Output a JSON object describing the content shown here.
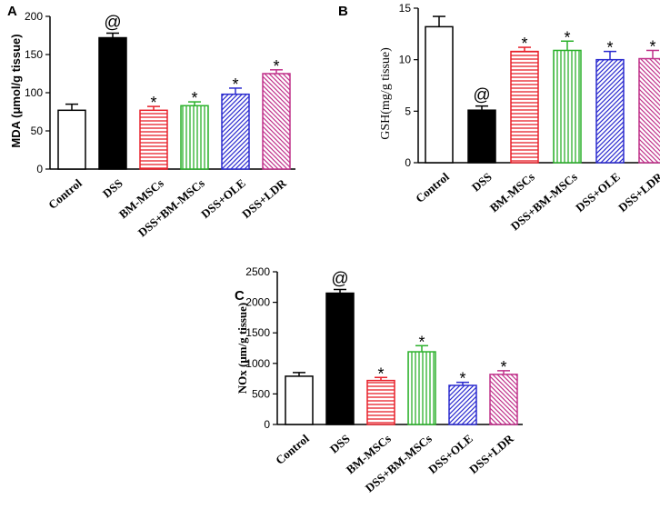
{
  "chart_data": [
    {
      "type": "bar",
      "panel": "A",
      "ylabel": "MDA (μmol/g tissue)",
      "ylim": [
        0,
        200
      ],
      "yticks": [
        0,
        50,
        100,
        150,
        200
      ],
      "categories": [
        "Control",
        "DSS",
        "BM-MSCs",
        "DSS+BM-MSCs",
        "DSS+OLE",
        "DSS+LDR"
      ],
      "values": [
        77,
        172,
        77,
        83,
        98,
        125
      ],
      "errors": [
        8,
        6,
        5,
        5,
        8,
        5
      ],
      "annotations": [
        "",
        "@",
        "*",
        "*",
        "*",
        "*"
      ],
      "fills": [
        "white",
        "black",
        "hatch-red",
        "hatch-green",
        "hatch-blue",
        "hatch-pink"
      ]
    },
    {
      "type": "bar",
      "panel": "B",
      "ylabel": "GSH(mg/g tissue)",
      "ylim": [
        0,
        15
      ],
      "yticks": [
        0,
        5,
        10,
        15
      ],
      "categories": [
        "Control",
        "DSS",
        "BM-MSCs",
        "DSS+BM-MSCs",
        "DSS+OLE",
        "DSS+LDR"
      ],
      "values": [
        13.2,
        5.1,
        10.8,
        10.9,
        10.0,
        10.1
      ],
      "errors": [
        1.0,
        0.4,
        0.4,
        0.9,
        0.8,
        0.8
      ],
      "annotations": [
        "",
        "@",
        "*",
        "*",
        "*",
        "*"
      ],
      "fills": [
        "white",
        "black",
        "hatch-red",
        "hatch-green",
        "hatch-blue",
        "hatch-pink"
      ]
    },
    {
      "type": "bar",
      "panel": "C",
      "ylabel": "NOx (μm/g tissue)",
      "ylim": [
        0,
        2500
      ],
      "yticks": [
        0,
        500,
        1000,
        1500,
        2000,
        2500
      ],
      "categories": [
        "Control",
        "DSS",
        "BM-MSCs",
        "DSS+BM-MSCs",
        "DSS+OLE",
        "DSS+LDR"
      ],
      "values": [
        790,
        2150,
        720,
        1190,
        640,
        820
      ],
      "errors": [
        60,
        60,
        50,
        100,
        50,
        60
      ],
      "annotations": [
        "",
        "@",
        "*",
        "*",
        "*",
        "*"
      ],
      "fills": [
        "white",
        "black",
        "hatch-red",
        "hatch-green",
        "hatch-blue",
        "hatch-pink"
      ]
    }
  ],
  "colors": {
    "hatch-red": "#e8202a",
    "hatch-green": "#2bb12b",
    "hatch-blue": "#2b2bcf",
    "hatch-pink": "#c0308a"
  }
}
